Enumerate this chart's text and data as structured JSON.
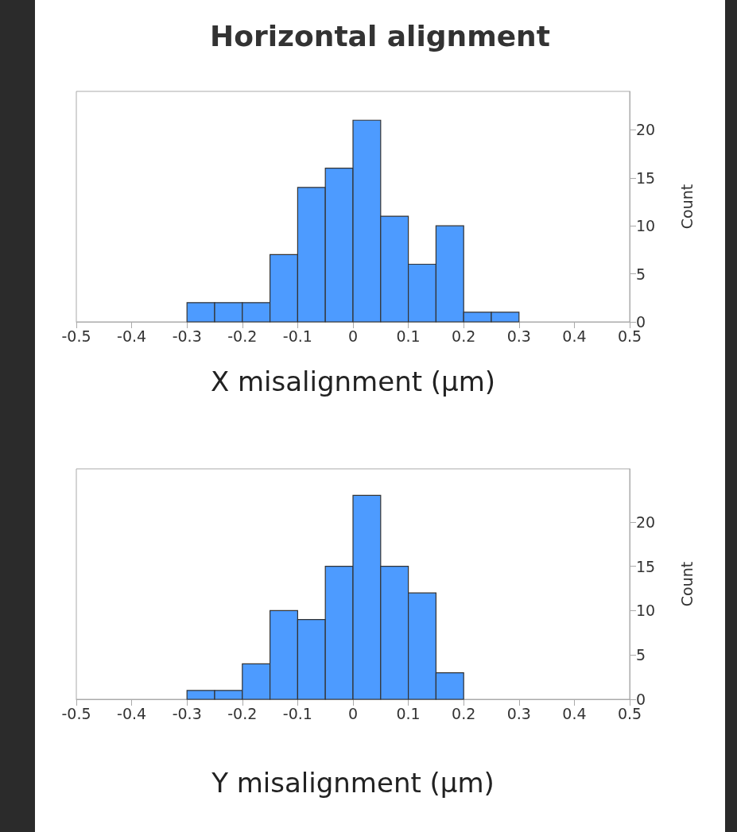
{
  "chart_data": [
    {
      "type": "histogram",
      "title": "Horizontal alignment",
      "xlabel": "X misalignment (μm)",
      "ylabel": "Count",
      "color": "#4d9bff",
      "bins": [
        -0.3,
        -0.25,
        -0.2,
        -0.15,
        -0.1,
        -0.05,
        0,
        0.05,
        0.1,
        0.15,
        0.2,
        0.25,
        0.3
      ],
      "values": [
        2,
        2,
        2,
        7,
        14,
        16,
        21,
        11,
        6,
        10,
        1,
        1
      ],
      "xlim": [
        -0.5,
        0.5
      ],
      "xticks": [
        -0.5,
        -0.4,
        -0.3,
        -0.2,
        -0.1,
        0,
        0.1,
        0.2,
        0.3,
        0.4,
        0.5
      ],
      "ylim": [
        0,
        24
      ],
      "yticks": [
        0,
        5,
        10,
        15,
        20
      ],
      "grid": false
    },
    {
      "type": "histogram",
      "xlabel": "Y misalignment (μm)",
      "ylabel": "Count",
      "color": "#4d9bff",
      "bins": [
        -0.3,
        -0.25,
        -0.2,
        -0.15,
        -0.1,
        -0.05,
        0,
        0.05,
        0.1,
        0.15,
        0.2
      ],
      "values": [
        1,
        1,
        4,
        10,
        9,
        15,
        23,
        15,
        12,
        3
      ],
      "xlim": [
        -0.5,
        0.5
      ],
      "xticks": [
        -0.5,
        -0.4,
        -0.3,
        -0.2,
        -0.1,
        0,
        0.1,
        0.2,
        0.3,
        0.4,
        0.5
      ],
      "ylim": [
        0,
        26
      ],
      "yticks": [
        0,
        5,
        10,
        15,
        20
      ],
      "grid": false
    }
  ]
}
